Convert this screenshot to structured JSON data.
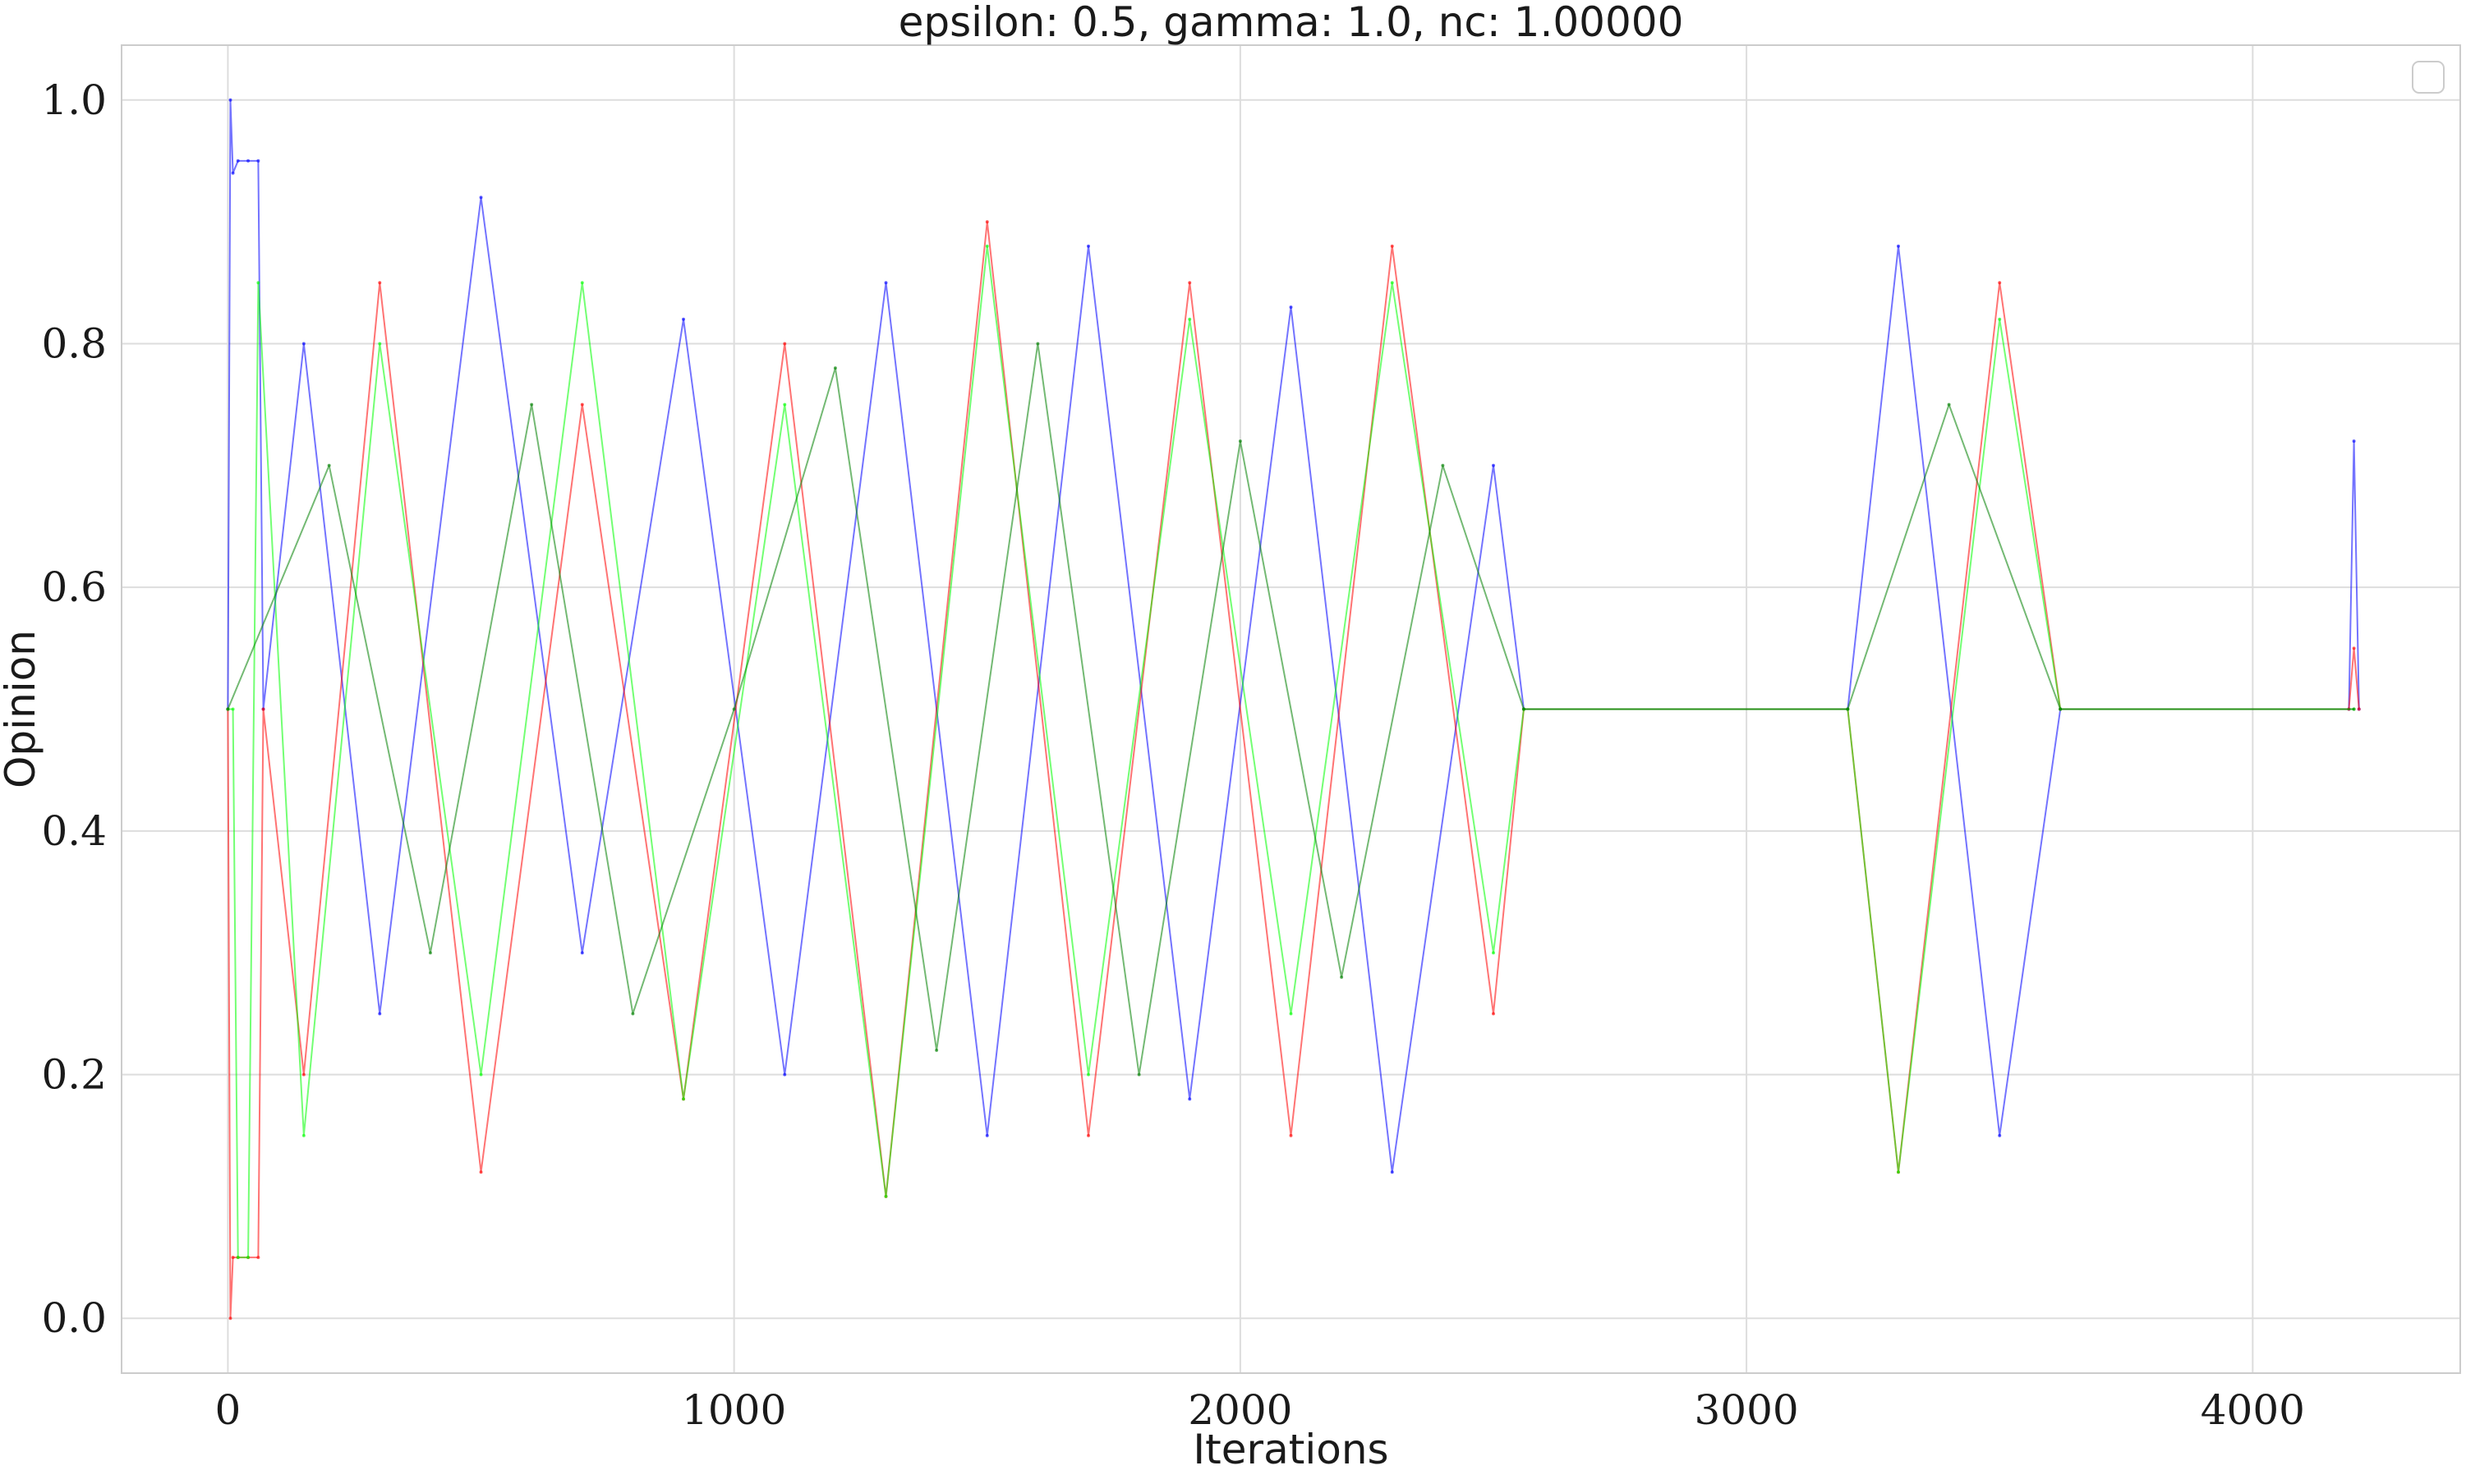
{
  "chart_data": {
    "type": "line",
    "title": "epsilon: 0.5, gamma: 1.0, nc: 1.00000",
    "xlabel": "Iterations",
    "ylabel": "Opinion",
    "xlim": [
      -210,
      4410
    ],
    "ylim": [
      -0.045,
      1.045
    ],
    "xticks": [
      0,
      1000,
      2000,
      3000,
      4000
    ],
    "yticks": [
      0.0,
      0.2,
      0.4,
      0.6,
      0.8,
      1.0
    ],
    "xtick_labels": [
      "0",
      "1000",
      "2000",
      "3000",
      "4000"
    ],
    "ytick_labels": [
      "0.0",
      "0.2",
      "0.4",
      "0.6",
      "0.8",
      "1.0"
    ],
    "grid": true,
    "legend": {
      "placement": "top-right",
      "entries": []
    },
    "series_colors": [
      "#0000ff",
      "#ff0000",
      "#00ff00",
      "#008000"
    ],
    "series": [
      {
        "color": "#0000ff",
        "x": [
          0,
          5,
          10,
          20,
          40,
          60,
          70,
          150,
          300,
          500,
          700,
          900,
          1100,
          1300,
          1500,
          1700,
          1900,
          2100,
          2300,
          2500,
          2560,
          3200,
          3300,
          3500,
          3620,
          4190,
          4200,
          4210
        ],
        "y": [
          0.5,
          1.0,
          0.94,
          0.95,
          0.95,
          0.95,
          0.5,
          0.8,
          0.25,
          0.92,
          0.3,
          0.82,
          0.2,
          0.85,
          0.15,
          0.88,
          0.18,
          0.83,
          0.12,
          0.7,
          0.5,
          0.5,
          0.88,
          0.15,
          0.5,
          0.5,
          0.72,
          0.5
        ]
      },
      {
        "color": "#ff0000",
        "x": [
          0,
          5,
          10,
          20,
          40,
          60,
          70,
          150,
          300,
          500,
          700,
          900,
          1100,
          1300,
          1500,
          1700,
          1900,
          2100,
          2300,
          2500,
          2560,
          3200,
          3300,
          3500,
          3620,
          4190,
          4200,
          4210
        ],
        "y": [
          0.5,
          0.0,
          0.05,
          0.05,
          0.05,
          0.05,
          0.5,
          0.2,
          0.85,
          0.12,
          0.75,
          0.18,
          0.8,
          0.1,
          0.9,
          0.15,
          0.85,
          0.15,
          0.88,
          0.25,
          0.5,
          0.5,
          0.12,
          0.85,
          0.5,
          0.5,
          0.55,
          0.5
        ]
      },
      {
        "color": "#00ff00",
        "x": [
          0,
          10,
          20,
          40,
          60,
          150,
          300,
          500,
          700,
          900,
          1100,
          1300,
          1500,
          1700,
          1900,
          2100,
          2300,
          2500,
          2560,
          3200,
          3300,
          3500,
          3620,
          4200
        ],
        "y": [
          0.5,
          0.5,
          0.05,
          0.05,
          0.85,
          0.15,
          0.8,
          0.2,
          0.85,
          0.18,
          0.75,
          0.1,
          0.88,
          0.2,
          0.82,
          0.25,
          0.85,
          0.3,
          0.5,
          0.5,
          0.12,
          0.82,
          0.5,
          0.5
        ]
      },
      {
        "color": "#008000",
        "x": [
          0,
          200,
          400,
          600,
          800,
          1000,
          1200,
          1400,
          1600,
          1800,
          2000,
          2200,
          2400,
          2560,
          3200,
          3400,
          3620,
          4200
        ],
        "y": [
          0.5,
          0.7,
          0.3,
          0.75,
          0.25,
          0.5,
          0.78,
          0.22,
          0.8,
          0.2,
          0.72,
          0.28,
          0.7,
          0.5,
          0.5,
          0.75,
          0.5,
          0.5
        ]
      }
    ]
  }
}
